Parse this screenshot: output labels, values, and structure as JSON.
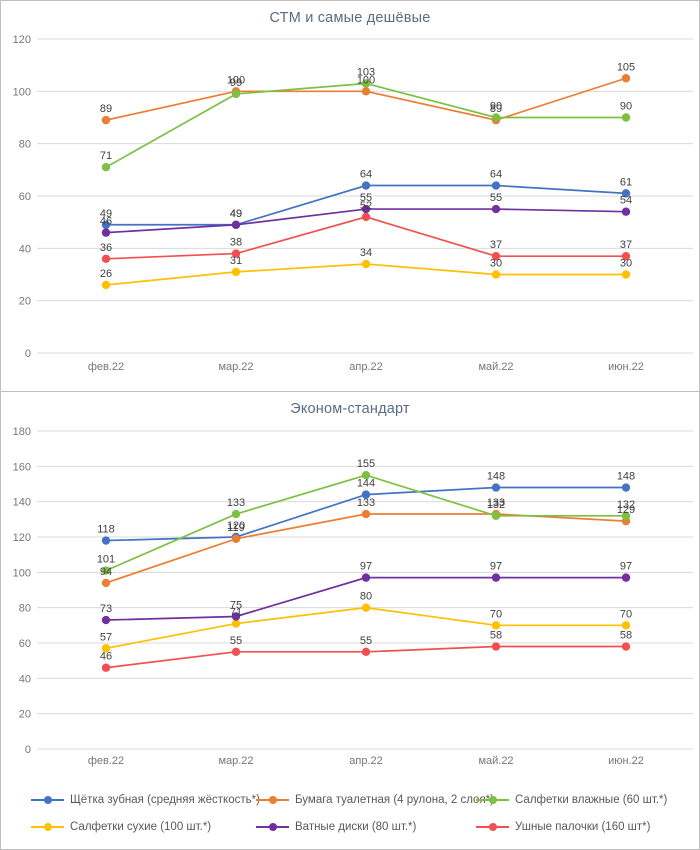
{
  "page": {
    "background": "#ffffff",
    "border_color": "#bfbfbf",
    "grid_color": "#d9d9d9",
    "axis_text_color": "#767676",
    "data_label_color": "#404040",
    "title_color": "#5b6b84"
  },
  "chart_data": [
    {
      "type": "line",
      "title": "СТМ и самые дешёвые",
      "categories": [
        "фев.22",
        "мар.22",
        "апр.22",
        "май.22",
        "июн.22"
      ],
      "ylim": [
        0,
        120
      ],
      "yticks": [
        0,
        20,
        40,
        60,
        80,
        100,
        120
      ],
      "grid": true,
      "legend_position": "none",
      "data_labels": true,
      "series": [
        {
          "name": "Щётка зубная (средняя жёсткость*)",
          "color": "#4472c4",
          "values": [
            49,
            49,
            64,
            64,
            61
          ]
        },
        {
          "name": "Бумага туалетная (4 рулона, 2 слоя*)",
          "color": "#ed7d31",
          "values": [
            89,
            100,
            100,
            89,
            105
          ]
        },
        {
          "name": "Салфетки влажные (60 шт.*)",
          "color": "#7dc142",
          "values": [
            71,
            99,
            103,
            90,
            90
          ]
        },
        {
          "name": "Салфетки сухие (100 шт.*)",
          "color": "#ffc000",
          "values": [
            26,
            31,
            34,
            30,
            30
          ]
        },
        {
          "name": "Ватные диски (80 шт.*)",
          "color": "#7030a0",
          "values": [
            46,
            49,
            55,
            55,
            54
          ]
        },
        {
          "name": "Ушные палочки (160 шт*)",
          "color": "#f25050",
          "values": [
            36,
            38,
            52,
            37,
            37
          ]
        }
      ]
    },
    {
      "type": "line",
      "title": "Эконом-стандарт",
      "categories": [
        "фев.22",
        "мар.22",
        "апр.22",
        "май.22",
        "июн.22"
      ],
      "ylim": [
        0,
        180
      ],
      "yticks": [
        0,
        20,
        40,
        60,
        80,
        100,
        120,
        140,
        160,
        180
      ],
      "grid": true,
      "legend_position": "bottom",
      "data_labels": true,
      "series": [
        {
          "name": "Щётка зубная (средняя жёсткость*)",
          "color": "#4472c4",
          "values": [
            118,
            120,
            144,
            148,
            148
          ]
        },
        {
          "name": "Бумага туалетная (4 рулона, 2 слоя*)",
          "color": "#ed7d31",
          "values": [
            94,
            119,
            133,
            133,
            129
          ]
        },
        {
          "name": "Салфетки влажные (60 шт.*)",
          "color": "#7dc142",
          "values": [
            101,
            133,
            155,
            132,
            132
          ]
        },
        {
          "name": "Салфетки сухие (100 шт.*)",
          "color": "#ffc000",
          "values": [
            57,
            71,
            80,
            70,
            70
          ]
        },
        {
          "name": "Ватные диски (80 шт.*)",
          "color": "#7030a0",
          "values": [
            73,
            75,
            97,
            97,
            97
          ]
        },
        {
          "name": "Ушные палочки (160 шт*)",
          "color": "#f25050",
          "values": [
            46,
            55,
            55,
            58,
            58
          ]
        }
      ]
    }
  ],
  "legend": {
    "rows": 2,
    "columns": 3,
    "items": [
      {
        "label": "Щётка зубная (средняя жёсткость*)",
        "color": "#4472c4"
      },
      {
        "label": "Бумага туалетная (4 рулона, 2 слоя*)",
        "color": "#ed7d31"
      },
      {
        "label": "Салфетки влажные (60 шт.*)",
        "color": "#7dc142"
      },
      {
        "label": "Салфетки сухие (100 шт.*)",
        "color": "#ffc000"
      },
      {
        "label": "Ватные диски (80 шт.*)",
        "color": "#7030a0"
      },
      {
        "label": "Ушные палочки (160 шт*)",
        "color": "#f25050"
      }
    ]
  }
}
